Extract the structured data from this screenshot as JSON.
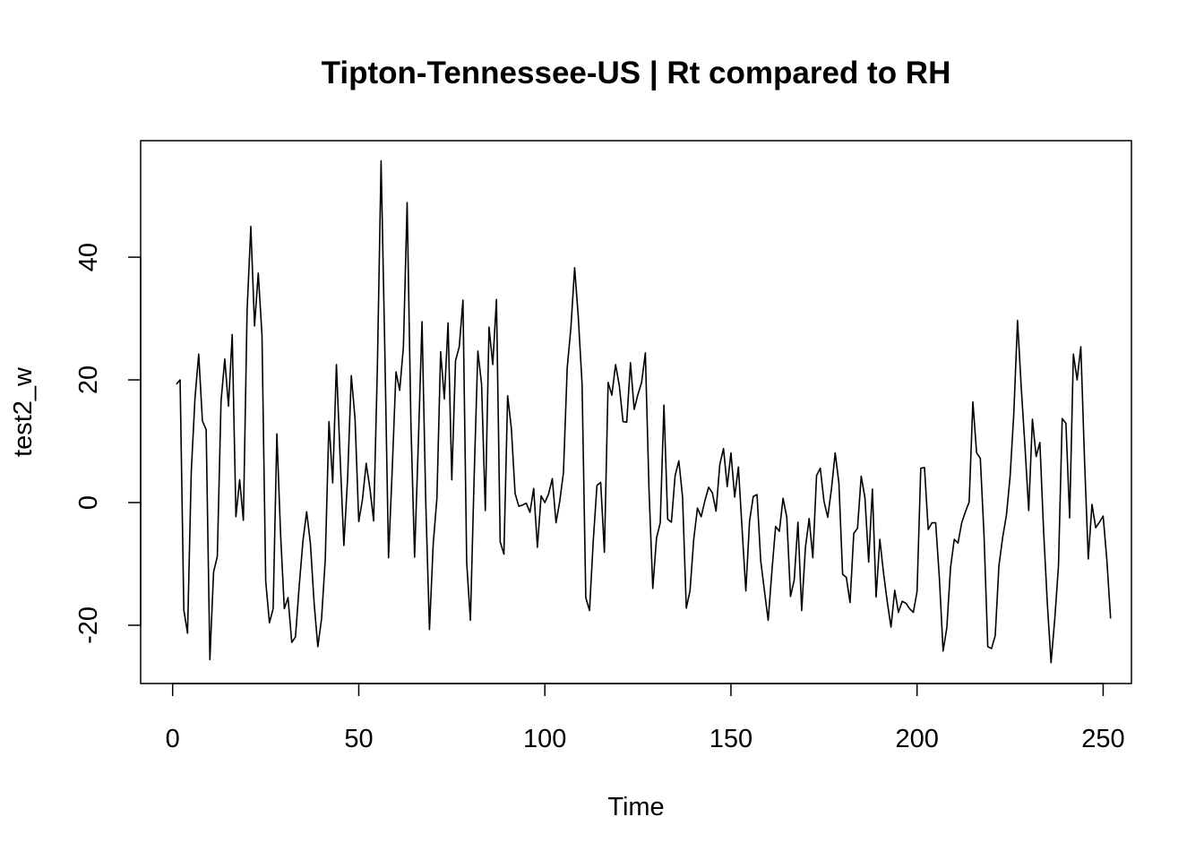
{
  "chart_data": {
    "type": "line",
    "title": "Tipton-Tennessee-US | Rt compared to RH",
    "xlabel": "Time",
    "ylabel": "test2_w",
    "xlim": [
      -8.6,
      257.6
    ],
    "ylim": [
      -29.5,
      59.0
    ],
    "x_ticks": [
      0,
      50,
      100,
      150,
      200,
      250
    ],
    "y_ticks": [
      -20,
      0,
      20,
      40
    ],
    "grid": false,
    "legend": "none",
    "color": "#000000",
    "x_start": 1,
    "series": [
      {
        "values": [
          19.3,
          20.0,
          -17.5,
          -21.3,
          5.0,
          17.0,
          24.2,
          13.3,
          11.9,
          -25.6,
          -11.3,
          -8.8,
          16.5,
          23.4,
          15.7,
          27.4,
          -2.3,
          3.7,
          -2.9,
          31.3,
          45.0,
          28.8,
          37.4,
          27.3,
          -12.8,
          -19.6,
          -17.3,
          11.2,
          -5.2,
          -17.3,
          -15.5,
          -22.8,
          -21.9,
          -13.6,
          -6.3,
          -1.5,
          -6.6,
          -16.3,
          -23.5,
          -19.0,
          -9.3,
          13.2,
          3.2,
          22.5,
          7.3,
          -7.0,
          3.9,
          20.7,
          13.7,
          -3.1,
          0.5,
          6.4,
          2.3,
          -3.0,
          22.0,
          55.7,
          25.0,
          -9.0,
          5.5,
          21.3,
          18.3,
          25.4,
          48.9,
          13.2,
          -8.9,
          9.6,
          29.5,
          0.1,
          -20.7,
          -6.8,
          0.7,
          24.6,
          16.9,
          29.3,
          3.7,
          23.1,
          25.4,
          33.0,
          -9.8,
          -19.2,
          4.1,
          24.7,
          19.3,
          -1.3,
          28.6,
          22.5,
          33.1,
          -6.4,
          -8.4,
          17.4,
          12.1,
          1.5,
          -0.6,
          -0.4,
          -0.1,
          -1.6,
          2.3,
          -7.3,
          1.1,
          0.0,
          1.4,
          3.9,
          -3.3,
          0.2,
          4.9,
          21.9,
          28.5,
          38.3,
          30.1,
          19.3,
          -15.5,
          -17.6,
          -6.3,
          2.8,
          3.3,
          -8.1,
          19.6,
          17.5,
          22.5,
          19.1,
          13.2,
          13.1,
          22.8,
          15.2,
          17.6,
          19.6,
          24.4,
          1.8,
          -14.0,
          -5.8,
          -3.3,
          15.9,
          -2.7,
          -3.2,
          4.4,
          6.8,
          0.9,
          -17.2,
          -14.4,
          -6.0,
          -0.9,
          -2.3,
          0.3,
          2.5,
          1.6,
          -1.4,
          6.2,
          8.8,
          2.6,
          8.1,
          0.9,
          5.8,
          -4.4,
          -14.4,
          -3.0,
          1.0,
          1.3,
          -9.5,
          -14.4,
          -19.2,
          -11.2,
          -3.9,
          -4.7,
          0.7,
          -2.4,
          -15.3,
          -12.6,
          -3.2,
          -17.6,
          -7.4,
          -2.6,
          -9.0,
          4.4,
          5.6,
          0.2,
          -2.4,
          2.2,
          8.1,
          3.2,
          -11.7,
          -12.2,
          -16.3,
          -5.0,
          -4.2,
          4.3,
          0.8,
          -9.7,
          2.2,
          -15.4,
          -6.0,
          -11.5,
          -16.2,
          -20.3,
          -14.3,
          -17.9,
          -16.1,
          -16.4,
          -17.3,
          -17.9,
          -14.5,
          5.6,
          5.7,
          -4.4,
          -3.3,
          -3.3,
          -12.3,
          -24.2,
          -20.4,
          -10.6,
          -6.0,
          -6.6,
          -3.3,
          -1.5,
          0.1,
          16.4,
          8.1,
          7.2,
          -5.4,
          -23.5,
          -23.8,
          -21.7,
          -10.3,
          -5.7,
          -2.1,
          4.2,
          14.6,
          29.7,
          18.7,
          9.1,
          -1.3,
          13.6,
          7.5,
          9.8,
          -4.6,
          -16.4,
          -26.1,
          -19.0,
          -10.3,
          13.7,
          12.9,
          -2.5,
          24.2,
          20.0,
          25.4,
          6.9,
          -9.2,
          -0.3,
          -4.1,
          -3.2,
          -2.2,
          -9.4,
          -18.9
        ]
      }
    ]
  }
}
